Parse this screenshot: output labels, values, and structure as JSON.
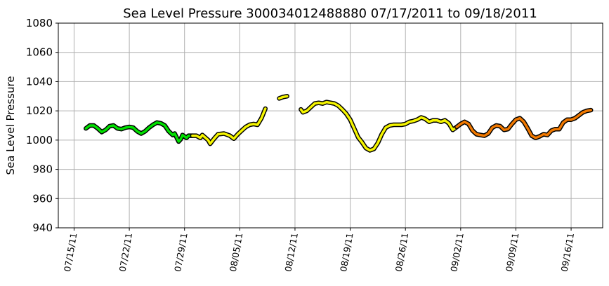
{
  "chart_data": {
    "type": "line",
    "title": "Sea Level Pressure 300034012488880  07/17/2011 to 09/18/2011",
    "xlabel": "",
    "ylabel": "Sea Level Pressure",
    "ylim": [
      940,
      1080
    ],
    "xlim": [
      "2011-07-13",
      "2011-09-20"
    ],
    "yticks": [
      940,
      960,
      980,
      1000,
      1020,
      1040,
      1060,
      1080
    ],
    "xticks": [
      {
        "date": "2011-07-15",
        "label": "07/15/11"
      },
      {
        "date": "2011-07-22",
        "label": "07/22/11"
      },
      {
        "date": "2011-07-29",
        "label": "07/29/11"
      },
      {
        "date": "2011-08-05",
        "label": "08/05/11"
      },
      {
        "date": "2011-08-12",
        "label": "08/12/11"
      },
      {
        "date": "2011-08-19",
        "label": "08/19/11"
      },
      {
        "date": "2011-08-26",
        "label": "08/26/11"
      },
      {
        "date": "2011-09-02",
        "label": "09/02/11"
      },
      {
        "date": "2011-09-09",
        "label": "09/09/11"
      },
      {
        "date": "2011-09-16",
        "label": "09/16/11"
      }
    ],
    "grid": true,
    "colors": {
      "green": "#00e000",
      "yellow": "#f5f500",
      "orange": "#f07800",
      "outline": "#000000",
      "grid": "#b0b0b0"
    },
    "series": [
      {
        "color": "#00e000",
        "segments": [
          [
            [
              "2011-07-16 12:00",
              1008
            ],
            [
              "2011-07-16 18:00",
              1009
            ],
            [
              "2011-07-17 00:00",
              1010
            ],
            [
              "2011-07-17 12:00",
              1010
            ],
            [
              "2011-07-18 00:00",
              1008
            ],
            [
              "2011-07-18 12:00",
              1005.5
            ],
            [
              "2011-07-19 00:00",
              1007
            ],
            [
              "2011-07-19 12:00",
              1009.5
            ],
            [
              "2011-07-20 00:00",
              1010
            ],
            [
              "2011-07-20 12:00",
              1008
            ],
            [
              "2011-07-21 00:00",
              1007.5
            ],
            [
              "2011-07-21 12:00",
              1008.5
            ],
            [
              "2011-07-22 00:00",
              1009
            ],
            [
              "2011-07-22 12:00",
              1008.5
            ],
            [
              "2011-07-23 00:00",
              1006
            ],
            [
              "2011-07-23 12:00",
              1004.5
            ],
            [
              "2011-07-24 00:00",
              1006
            ],
            [
              "2011-07-24 12:00",
              1008.5
            ],
            [
              "2011-07-25 00:00",
              1010.5
            ],
            [
              "2011-07-25 12:00",
              1012
            ],
            [
              "2011-07-26 00:00",
              1011.5
            ],
            [
              "2011-07-26 12:00",
              1010
            ],
            [
              "2011-07-27 00:00",
              1006
            ],
            [
              "2011-07-27 12:00",
              1003.5
            ],
            [
              "2011-07-27 18:00",
              1004.5
            ],
            [
              "2011-07-28 06:00",
              999
            ],
            [
              "2011-07-28 12:00",
              1000.5
            ],
            [
              "2011-07-28 18:00",
              1003.5
            ],
            [
              "2011-07-29 06:00",
              1001.5
            ],
            [
              "2011-07-29 12:00",
              1003
            ],
            [
              "2011-07-30 00:00",
              1003
            ]
          ]
        ]
      },
      {
        "color": "#f5f500",
        "segments": [
          [
            [
              "2011-07-30 00:00",
              1003
            ],
            [
              "2011-07-30 12:00",
              1003
            ],
            [
              "2011-07-31 00:00",
              1001.5
            ],
            [
              "2011-07-31 06:00",
              1003.5
            ],
            [
              "2011-08-01 00:00",
              1000
            ],
            [
              "2011-08-01 06:00",
              997.5
            ],
            [
              "2011-08-01 18:00",
              1001
            ],
            [
              "2011-08-02 06:00",
              1004
            ],
            [
              "2011-08-03 00:00",
              1004.5
            ],
            [
              "2011-08-03 18:00",
              1003
            ],
            [
              "2011-08-04 06:00",
              1001
            ],
            [
              "2011-08-04 18:00",
              1004
            ],
            [
              "2011-08-05 06:00",
              1006.5
            ],
            [
              "2011-08-05 18:00",
              1009
            ],
            [
              "2011-08-06 06:00",
              1010.5
            ],
            [
              "2011-08-06 18:00",
              1011
            ],
            [
              "2011-08-07 06:00",
              1010.5
            ],
            [
              "2011-08-07 18:00",
              1015
            ],
            [
              "2011-08-08 06:00",
              1021.5
            ]
          ],
          [
            [
              "2011-08-10 00:00",
              1028.5
            ],
            [
              "2011-08-10 12:00",
              1029.5
            ],
            [
              "2011-08-11 00:00",
              1030
            ]
          ],
          [
            [
              "2011-08-12 18:00",
              1021
            ],
            [
              "2011-08-13 00:00",
              1019
            ],
            [
              "2011-08-13 12:00",
              1020
            ],
            [
              "2011-08-14 00:00",
              1022.5
            ],
            [
              "2011-08-14 12:00",
              1025
            ],
            [
              "2011-08-15 00:00",
              1025.5
            ],
            [
              "2011-08-15 12:00",
              1025
            ],
            [
              "2011-08-16 00:00",
              1026
            ],
            [
              "2011-08-16 12:00",
              1025.5
            ],
            [
              "2011-08-17 00:00",
              1025
            ],
            [
              "2011-08-17 12:00",
              1023.5
            ],
            [
              "2011-08-18 00:00",
              1021
            ],
            [
              "2011-08-18 12:00",
              1018
            ],
            [
              "2011-08-19 00:00",
              1014
            ],
            [
              "2011-08-19 12:00",
              1008
            ],
            [
              "2011-08-20 00:00",
              1002
            ],
            [
              "2011-08-20 12:00",
              998.5
            ],
            [
              "2011-08-21 00:00",
              994.5
            ],
            [
              "2011-08-21 12:00",
              993
            ],
            [
              "2011-08-22 00:00",
              994
            ],
            [
              "2011-08-22 12:00",
              998
            ],
            [
              "2011-08-23 00:00",
              1004
            ],
            [
              "2011-08-23 12:00",
              1008.5
            ],
            [
              "2011-08-24 00:00",
              1010
            ],
            [
              "2011-08-24 12:00",
              1010.5
            ],
            [
              "2011-08-25 00:00",
              1010.5
            ],
            [
              "2011-08-25 12:00",
              1010.5
            ],
            [
              "2011-08-26 00:00",
              1011
            ],
            [
              "2011-08-26 12:00",
              1012.5
            ],
            [
              "2011-08-27 00:00",
              1013
            ],
            [
              "2011-08-27 12:00",
              1014
            ],
            [
              "2011-08-28 00:00",
              1015.5
            ],
            [
              "2011-08-28 12:00",
              1014.5
            ],
            [
              "2011-08-29 00:00",
              1012.5
            ],
            [
              "2011-08-29 12:00",
              1013.5
            ],
            [
              "2011-08-30 00:00",
              1013.5
            ],
            [
              "2011-08-30 12:00",
              1012.5
            ],
            [
              "2011-08-31 00:00",
              1013.5
            ],
            [
              "2011-08-31 12:00",
              1011.5
            ],
            [
              "2011-09-01 00:00",
              1007
            ],
            [
              "2011-09-01 12:00",
              1009
            ]
          ]
        ]
      },
      {
        "color": "#f07800",
        "segments": [
          [
            [
              "2011-09-01 12:00",
              1009
            ],
            [
              "2011-09-02 00:00",
              1011
            ],
            [
              "2011-09-02 12:00",
              1012.5
            ],
            [
              "2011-09-03 00:00",
              1011
            ],
            [
              "2011-09-03 12:00",
              1006.5
            ],
            [
              "2011-09-04 00:00",
              1004
            ],
            [
              "2011-09-04 12:00",
              1003.5
            ],
            [
              "2011-09-05 00:00",
              1003
            ],
            [
              "2011-09-05 12:00",
              1004.5
            ],
            [
              "2011-09-06 00:00",
              1008.5
            ],
            [
              "2011-09-06 12:00",
              1010
            ],
            [
              "2011-09-07 00:00",
              1009.5
            ],
            [
              "2011-09-07 12:00",
              1007
            ],
            [
              "2011-09-08 00:00",
              1007.5
            ],
            [
              "2011-09-08 12:00",
              1011
            ],
            [
              "2011-09-09 00:00",
              1014
            ],
            [
              "2011-09-09 12:00",
              1015
            ],
            [
              "2011-09-10 00:00",
              1012.5
            ],
            [
              "2011-09-10 12:00",
              1008
            ],
            [
              "2011-09-11 00:00",
              1003
            ],
            [
              "2011-09-11 12:00",
              1001.5
            ],
            [
              "2011-09-12 00:00",
              1002.5
            ],
            [
              "2011-09-12 12:00",
              1004
            ],
            [
              "2011-09-13 00:00",
              1003.5
            ],
            [
              "2011-09-13 12:00",
              1006.5
            ],
            [
              "2011-09-14 00:00",
              1007.5
            ],
            [
              "2011-09-14 12:00",
              1007.5
            ],
            [
              "2011-09-15 00:00",
              1012
            ],
            [
              "2011-09-15 12:00",
              1014
            ],
            [
              "2011-09-16 00:00",
              1014
            ],
            [
              "2011-09-16 12:00",
              1015
            ],
            [
              "2011-09-17 00:00",
              1017
            ],
            [
              "2011-09-17 12:00",
              1019
            ],
            [
              "2011-09-18 00:00",
              1020
            ],
            [
              "2011-09-18 12:00",
              1020.5
            ]
          ]
        ]
      }
    ]
  }
}
